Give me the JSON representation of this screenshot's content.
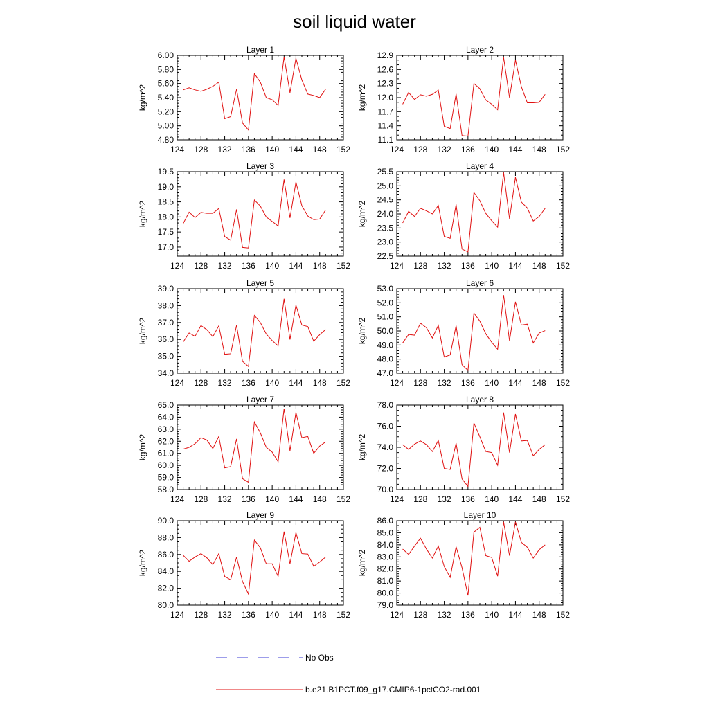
{
  "title": "soil liquid water",
  "legend": [
    {
      "label": "No Obs",
      "color": "#3b3bd6",
      "style": "dashed"
    },
    {
      "label": "b.e21.B1PCT.f09_g17.CMIP6-1pctCO2-rad.001",
      "color": "#e01010",
      "style": "solid"
    }
  ],
  "chart_data": [
    {
      "type": "line",
      "title": "Layer 1",
      "ylabel": "kg/m^2",
      "xlim": [
        124,
        152
      ],
      "xticks": [
        124,
        128,
        132,
        136,
        140,
        144,
        148,
        152
      ],
      "ylim": [
        4.8,
        6.0
      ],
      "ytick_step": 0.2,
      "ytick_decimals": 2,
      "yminor_per_major": 5,
      "x": [
        125,
        126,
        127,
        128,
        129,
        130,
        131,
        132,
        133,
        134,
        135,
        136,
        137,
        138,
        139,
        140,
        141,
        142,
        143,
        144,
        145,
        146,
        147,
        148,
        149
      ],
      "series": [
        {
          "name": "b.e21.B1PCT.f09_g17.CMIP6-1pctCO2-rad.001",
          "color": "#e01010",
          "values": [
            5.51,
            5.54,
            5.51,
            5.49,
            5.52,
            5.56,
            5.62,
            5.1,
            5.13,
            5.52,
            5.04,
            4.94,
            5.74,
            5.62,
            5.4,
            5.37,
            5.29,
            5.98,
            5.47,
            5.96,
            5.65,
            5.45,
            5.43,
            5.4,
            5.52
          ]
        }
      ]
    },
    {
      "type": "line",
      "title": "Layer 2",
      "ylabel": "kg/m^2",
      "xlim": [
        124,
        152
      ],
      "xticks": [
        124,
        128,
        132,
        136,
        140,
        144,
        148,
        152
      ],
      "ylim": [
        11.1,
        12.9
      ],
      "ytick_step": 0.3,
      "ytick_decimals": 1,
      "yminor_per_major": 3,
      "x": [
        125,
        126,
        127,
        128,
        129,
        130,
        131,
        132,
        133,
        134,
        135,
        136,
        137,
        138,
        139,
        140,
        141,
        142,
        143,
        144,
        145,
        146,
        147,
        148,
        149
      ],
      "series": [
        {
          "name": "b.e21.B1PCT.f09_g17.CMIP6-1pctCO2-rad.001",
          "color": "#e01010",
          "values": [
            11.86,
            12.11,
            11.96,
            12.06,
            12.03,
            12.07,
            12.16,
            11.39,
            11.34,
            12.08,
            11.19,
            11.18,
            12.3,
            12.19,
            11.95,
            11.86,
            11.74,
            12.86,
            12.0,
            12.8,
            12.23,
            11.89,
            11.89,
            11.9,
            12.07
          ]
        }
      ]
    },
    {
      "type": "line",
      "title": "Layer 3",
      "ylabel": "kg/m^2",
      "xlim": [
        124,
        152
      ],
      "xticks": [
        124,
        128,
        132,
        136,
        140,
        144,
        148,
        152
      ],
      "ylim": [
        16.7,
        19.5
      ],
      "yticks": [
        17.0,
        17.5,
        18.0,
        18.5,
        19.0,
        19.5
      ],
      "ytick_decimals": 1,
      "yminor_step": 0.1,
      "x": [
        125,
        126,
        127,
        128,
        129,
        130,
        131,
        132,
        133,
        134,
        135,
        136,
        137,
        138,
        139,
        140,
        141,
        142,
        143,
        144,
        145,
        146,
        147,
        148,
        149
      ],
      "series": [
        {
          "name": "b.e21.B1PCT.f09_g17.CMIP6-1pctCO2-rad.001",
          "color": "#e01010",
          "values": [
            17.78,
            18.16,
            17.98,
            18.15,
            18.12,
            18.12,
            18.28,
            17.35,
            17.23,
            18.25,
            16.99,
            16.97,
            18.56,
            18.36,
            18.0,
            17.85,
            17.7,
            19.24,
            17.97,
            19.16,
            18.37,
            18.03,
            17.91,
            17.93,
            18.23
          ]
        }
      ]
    },
    {
      "type": "line",
      "title": "Layer 4",
      "ylabel": "kg/m^2",
      "xlim": [
        124,
        152
      ],
      "xticks": [
        124,
        128,
        132,
        136,
        140,
        144,
        148,
        152
      ],
      "ylim": [
        22.5,
        25.5
      ],
      "ytick_step": 0.5,
      "ytick_decimals": 1,
      "yminor_per_major": 5,
      "x": [
        125,
        126,
        127,
        128,
        129,
        130,
        131,
        132,
        133,
        134,
        135,
        136,
        137,
        138,
        139,
        140,
        141,
        142,
        143,
        144,
        145,
        146,
        147,
        148,
        149
      ],
      "series": [
        {
          "name": "b.e21.B1PCT.f09_g17.CMIP6-1pctCO2-rad.001",
          "color": "#e01010",
          "values": [
            23.68,
            24.09,
            23.91,
            24.2,
            24.11,
            24.0,
            24.3,
            23.2,
            23.13,
            24.34,
            22.75,
            22.65,
            24.76,
            24.47,
            24.02,
            23.76,
            23.53,
            25.47,
            23.83,
            25.3,
            24.42,
            24.21,
            23.75,
            23.91,
            24.2
          ]
        }
      ]
    },
    {
      "type": "line",
      "title": "Layer 5",
      "ylabel": "kg/m^2",
      "xlim": [
        124,
        152
      ],
      "xticks": [
        124,
        128,
        132,
        136,
        140,
        144,
        148,
        152
      ],
      "ylim": [
        34.0,
        39.0
      ],
      "ytick_step": 1.0,
      "ytick_decimals": 1,
      "yminor_per_major": 5,
      "x": [
        125,
        126,
        127,
        128,
        129,
        130,
        131,
        132,
        133,
        134,
        135,
        136,
        137,
        138,
        139,
        140,
        141,
        142,
        143,
        144,
        145,
        146,
        147,
        148,
        149
      ],
      "series": [
        {
          "name": "b.e21.B1PCT.f09_g17.CMIP6-1pctCO2-rad.001",
          "color": "#e01010",
          "values": [
            35.85,
            36.38,
            36.18,
            36.82,
            36.57,
            36.16,
            36.8,
            35.12,
            35.15,
            36.84,
            34.7,
            34.4,
            37.42,
            37.0,
            36.32,
            35.93,
            35.62,
            38.4,
            35.99,
            38.03,
            36.85,
            36.76,
            35.89,
            36.28,
            36.58
          ]
        }
      ]
    },
    {
      "type": "line",
      "title": "Layer 6",
      "ylabel": "kg/m^2",
      "xlim": [
        124,
        152
      ],
      "xticks": [
        124,
        128,
        132,
        136,
        140,
        144,
        148,
        152
      ],
      "ylim": [
        47.0,
        53.0
      ],
      "ytick_step": 1.0,
      "ytick_decimals": 1,
      "yminor_per_major": 5,
      "x": [
        125,
        126,
        127,
        128,
        129,
        130,
        131,
        132,
        133,
        134,
        135,
        136,
        137,
        138,
        139,
        140,
        141,
        142,
        143,
        144,
        145,
        146,
        147,
        148,
        149
      ],
      "series": [
        {
          "name": "b.e21.B1PCT.f09_g17.CMIP6-1pctCO2-rad.001",
          "color": "#e01010",
          "values": [
            49.15,
            49.75,
            49.7,
            50.55,
            50.23,
            49.5,
            50.4,
            48.15,
            48.3,
            50.38,
            47.6,
            47.2,
            51.27,
            50.7,
            49.8,
            49.2,
            48.7,
            52.55,
            49.3,
            52.07,
            50.42,
            50.48,
            49.15,
            49.85,
            50.02
          ]
        }
      ]
    },
    {
      "type": "line",
      "title": "Layer 7",
      "ylabel": "kg/m^2",
      "xlim": [
        124,
        152
      ],
      "xticks": [
        124,
        128,
        132,
        136,
        140,
        144,
        148,
        152
      ],
      "ylim": [
        58.0,
        65.0
      ],
      "ytick_step": 1.0,
      "ytick_decimals": 1,
      "yminor_per_major": 5,
      "x": [
        125,
        126,
        127,
        128,
        129,
        130,
        131,
        132,
        133,
        134,
        135,
        136,
        137,
        138,
        139,
        140,
        141,
        142,
        143,
        144,
        145,
        146,
        147,
        148,
        149
      ],
      "series": [
        {
          "name": "b.e21.B1PCT.f09_g17.CMIP6-1pctCO2-rad.001",
          "color": "#e01010",
          "values": [
            61.35,
            61.5,
            61.8,
            62.3,
            62.1,
            61.4,
            62.4,
            59.8,
            59.9,
            62.2,
            58.9,
            58.6,
            63.6,
            62.7,
            61.5,
            61.1,
            60.3,
            64.7,
            61.2,
            64.4,
            62.3,
            62.4,
            61.0,
            61.6,
            61.95
          ]
        }
      ]
    },
    {
      "type": "line",
      "title": "Layer 8",
      "ylabel": "kg/m^2",
      "xlim": [
        124,
        152
      ],
      "xticks": [
        124,
        128,
        132,
        136,
        140,
        144,
        148,
        152
      ],
      "ylim": [
        70.0,
        78.0
      ],
      "ytick_step": 2.0,
      "ytick_decimals": 1,
      "yminor_per_major": 4,
      "x": [
        125,
        126,
        127,
        128,
        129,
        130,
        131,
        132,
        133,
        134,
        135,
        136,
        137,
        138,
        139,
        140,
        141,
        142,
        143,
        144,
        145,
        146,
        147,
        148,
        149
      ],
      "series": [
        {
          "name": "b.e21.B1PCT.f09_g17.CMIP6-1pctCO2-rad.001",
          "color": "#e01010",
          "values": [
            74.25,
            73.8,
            74.3,
            74.6,
            74.25,
            73.6,
            74.65,
            72.0,
            71.9,
            74.4,
            71.0,
            70.3,
            76.3,
            75.0,
            73.6,
            73.5,
            72.3,
            77.3,
            73.5,
            77.15,
            74.6,
            74.65,
            73.2,
            73.8,
            74.25
          ]
        }
      ]
    },
    {
      "type": "line",
      "title": "Layer 9",
      "ylabel": "kg/m^2",
      "xlim": [
        124,
        152
      ],
      "xticks": [
        124,
        128,
        132,
        136,
        140,
        144,
        148,
        152
      ],
      "ylim": [
        80.0,
        90.0
      ],
      "ytick_step": 2.0,
      "ytick_decimals": 1,
      "yminor_per_major": 4,
      "x": [
        125,
        126,
        127,
        128,
        129,
        130,
        131,
        132,
        133,
        134,
        135,
        136,
        137,
        138,
        139,
        140,
        141,
        142,
        143,
        144,
        145,
        146,
        147,
        148,
        149
      ],
      "series": [
        {
          "name": "b.e21.B1PCT.f09_g17.CMIP6-1pctCO2-rad.001",
          "color": "#e01010",
          "values": [
            85.9,
            85.2,
            85.7,
            86.1,
            85.6,
            84.8,
            86.1,
            83.4,
            83.0,
            85.7,
            82.8,
            81.3,
            87.7,
            86.8,
            84.9,
            84.9,
            83.4,
            88.7,
            84.9,
            88.6,
            86.1,
            86.05,
            84.6,
            85.1,
            85.7
          ]
        }
      ]
    },
    {
      "type": "line",
      "title": "Layer 10",
      "ylabel": "kg/m^2",
      "xlim": [
        124,
        152
      ],
      "xticks": [
        124,
        128,
        132,
        136,
        140,
        144,
        148,
        152
      ],
      "ylim": [
        79.0,
        86.0
      ],
      "ytick_step": 1.0,
      "ytick_decimals": 1,
      "yminor_per_major": 5,
      "x": [
        125,
        126,
        127,
        128,
        129,
        130,
        131,
        132,
        133,
        134,
        135,
        136,
        137,
        138,
        139,
        140,
        141,
        142,
        143,
        144,
        145,
        146,
        147,
        148,
        149
      ],
      "series": [
        {
          "name": "b.e21.B1PCT.f09_g17.CMIP6-1pctCO2-rad.001",
          "color": "#e01010",
          "values": [
            83.65,
            83.2,
            83.9,
            84.55,
            83.65,
            82.9,
            83.9,
            82.2,
            81.3,
            83.85,
            82.1,
            79.8,
            85.05,
            85.45,
            83.1,
            82.95,
            81.4,
            85.9,
            83.1,
            85.9,
            84.2,
            83.8,
            82.9,
            83.6,
            84.0
          ]
        }
      ]
    }
  ]
}
